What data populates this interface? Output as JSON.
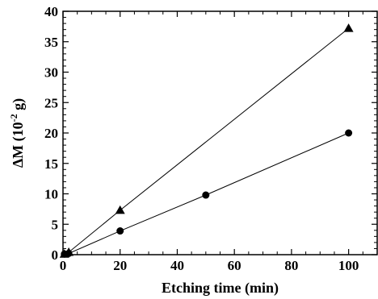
{
  "chart_data": {
    "type": "scatter",
    "xlabel": "Etching time (min)",
    "ylabel_main": "ΔM (10",
    "ylabel_sup": "-2",
    "ylabel_tail": " g)",
    "xlim": [
      0,
      110
    ],
    "ylim": [
      0,
      40
    ],
    "xticks": [
      0,
      20,
      40,
      60,
      80,
      100
    ],
    "yticks": [
      0,
      5,
      10,
      15,
      20,
      25,
      30,
      35,
      40
    ],
    "grid": false,
    "legend": "none",
    "series": [
      {
        "marker": "triangle",
        "color": "#000000",
        "connected": true,
        "x": [
          0.5,
          2,
          20,
          100
        ],
        "y": [
          0.1,
          0.4,
          7.3,
          37.2
        ]
      },
      {
        "marker": "circle",
        "color": "#000000",
        "connected": true,
        "x": [
          0.5,
          2,
          20,
          50,
          100
        ],
        "y": [
          0.1,
          0.2,
          3.9,
          9.8,
          20.0
        ]
      }
    ]
  }
}
